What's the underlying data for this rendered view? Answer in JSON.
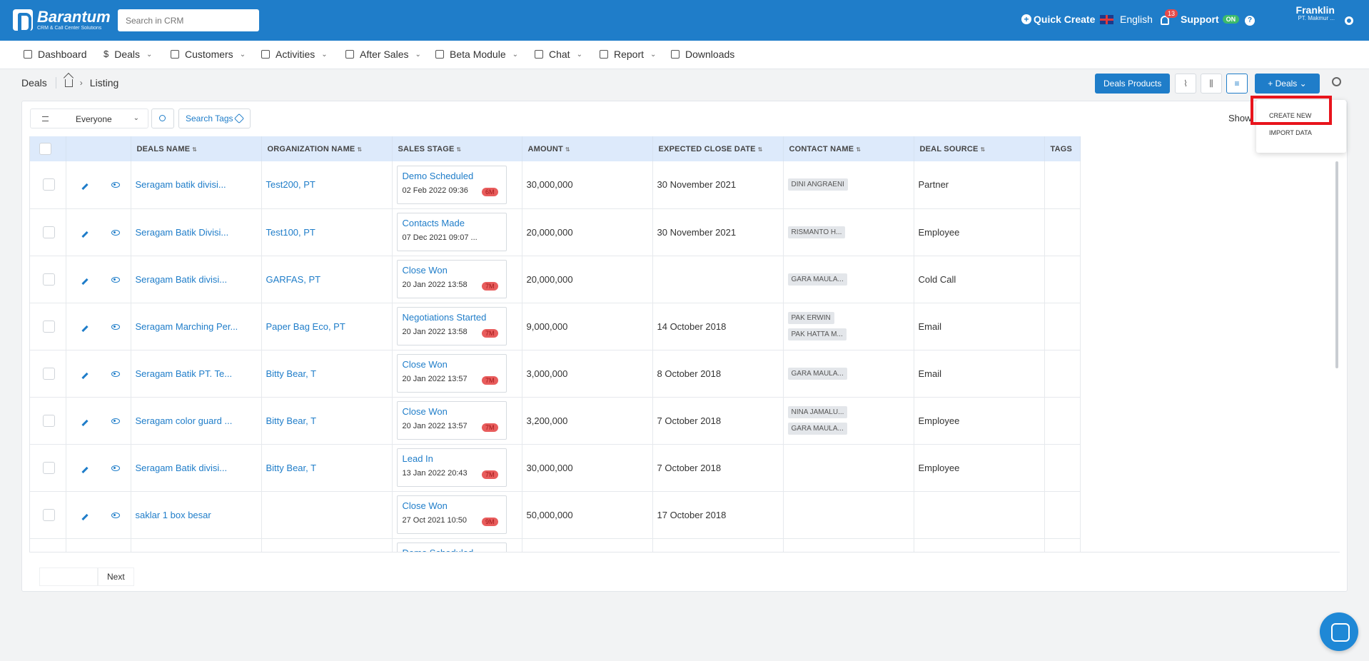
{
  "header": {
    "logo_name": "Barantum",
    "logo_sub": "CRM & Call Center Solutions",
    "search_placeholder": "Search in CRM",
    "quick_create": "Quick Create",
    "language": "English",
    "notification_count": "13",
    "support": "Support",
    "support_status": "ON",
    "help": "?",
    "user_name": "Franklin",
    "user_org": "PT. Makmur ..."
  },
  "nav": {
    "items": [
      {
        "label": "Dashboard",
        "icon": "home-icon"
      },
      {
        "label": "Deals",
        "icon": "dollar-icon",
        "dropdown": true
      },
      {
        "label": "Customers",
        "icon": "users-icon",
        "dropdown": true
      },
      {
        "label": "Activities",
        "icon": "pulse-icon",
        "dropdown": true
      },
      {
        "label": "After Sales",
        "icon": "user-icon",
        "dropdown": true
      },
      {
        "label": "Beta Module",
        "icon": "folder-icon",
        "dropdown": true
      },
      {
        "label": "Chat",
        "icon": "folder-icon",
        "dropdown": true
      },
      {
        "label": "Report",
        "icon": "chart-icon",
        "dropdown": true
      },
      {
        "label": "Downloads",
        "icon": "download-icon"
      }
    ]
  },
  "breadcrumb": {
    "module": "Deals",
    "page": "Listing"
  },
  "toolbar": {
    "deals_products": "Deals Products",
    "add_deals": "+ Deals",
    "dropdown": {
      "create_new": "CREATE NEW",
      "import_data": "IMPORT DATA"
    }
  },
  "filter": {
    "owner": "Everyone",
    "search_tags": "Search Tags",
    "show_label": "Show"
  },
  "table": {
    "columns": [
      "DEALS NAME",
      "ORGANIZATION NAME",
      "SALES STAGE",
      "AMOUNT",
      "EXPECTED CLOSE DATE",
      "CONTACT NAME",
      "DEAL SOURCE",
      "TAGS"
    ],
    "rows": [
      {
        "name": "Seragam batik divisi...",
        "org": "Test200, PT",
        "stage": "Demo Scheduled",
        "stage_date": "02 Feb 2022 09:36",
        "age": "6M",
        "amount": "30,000,000",
        "close": "30 November 2021",
        "contacts": [
          "DINI ANGRAENI"
        ],
        "source": "Partner"
      },
      {
        "name": "Seragam Batik Divisi...",
        "org": "Test100, PT",
        "stage": "Contacts Made",
        "stage_date": "07 Dec 2021 09:07 ...",
        "age": "",
        "amount": "20,000,000",
        "close": "30 November 2021",
        "contacts": [
          "RISMANTO H..."
        ],
        "source": "Employee"
      },
      {
        "name": "Seragam Batik divisi...",
        "org": "GARFAS, PT",
        "stage": "Close Won",
        "stage_date": "20 Jan 2022 13:58",
        "age": "7M",
        "amount": "20,000,000",
        "close": "",
        "contacts": [
          "GARA MAULA..."
        ],
        "source": "Cold Call"
      },
      {
        "name": "Seragam Marching Per...",
        "org": "Paper Bag Eco, PT",
        "stage": "Negotiations Started",
        "stage_date": "20 Jan 2022 13:58",
        "age": "7M",
        "amount": "9,000,000",
        "close": "14 October 2018",
        "contacts": [
          "PAK ERWIN",
          "PAK HATTA M..."
        ],
        "source": "Email"
      },
      {
        "name": "Seragam Batik PT. Te...",
        "org": "Bitty Bear, T",
        "stage": "Close Won",
        "stage_date": "20 Jan 2022 13:57",
        "age": "7M",
        "amount": "3,000,000",
        "close": "8 October 2018",
        "contacts": [
          "GARA MAULA..."
        ],
        "source": "Email"
      },
      {
        "name": "Seragam color guard ...",
        "org": "Bitty Bear, T",
        "stage": "Close Won",
        "stage_date": "20 Jan 2022 13:57",
        "age": "7M",
        "amount": "3,200,000",
        "close": "7 October 2018",
        "contacts": [
          "NINA JAMALU...",
          "GARA MAULA..."
        ],
        "source": "Employee"
      },
      {
        "name": "Seragam Batik divisi...",
        "org": "Bitty Bear, T",
        "stage": "Lead In",
        "stage_date": "13 Jan 2022 20:43",
        "age": "7M",
        "amount": "30,000,000",
        "close": "7 October 2018",
        "contacts": [],
        "source": "Employee"
      },
      {
        "name": "saklar 1 box besar",
        "org": "",
        "stage": "Close Won",
        "stage_date": "27 Oct 2021 10:50",
        "age": "9M",
        "amount": "50,000,000",
        "close": "17 October 2018",
        "contacts": [],
        "source": ""
      },
      {
        "name": "",
        "org": "",
        "stage": "Demo Scheduled",
        "stage_date": "",
        "age": "",
        "amount": "",
        "close": "",
        "contacts": [],
        "source": ""
      }
    ]
  },
  "pager": {
    "next": "Next"
  },
  "colors": {
    "primary": "#1f7dc9",
    "highlight": "#e8141c",
    "age_badge": "#e85c5c"
  }
}
